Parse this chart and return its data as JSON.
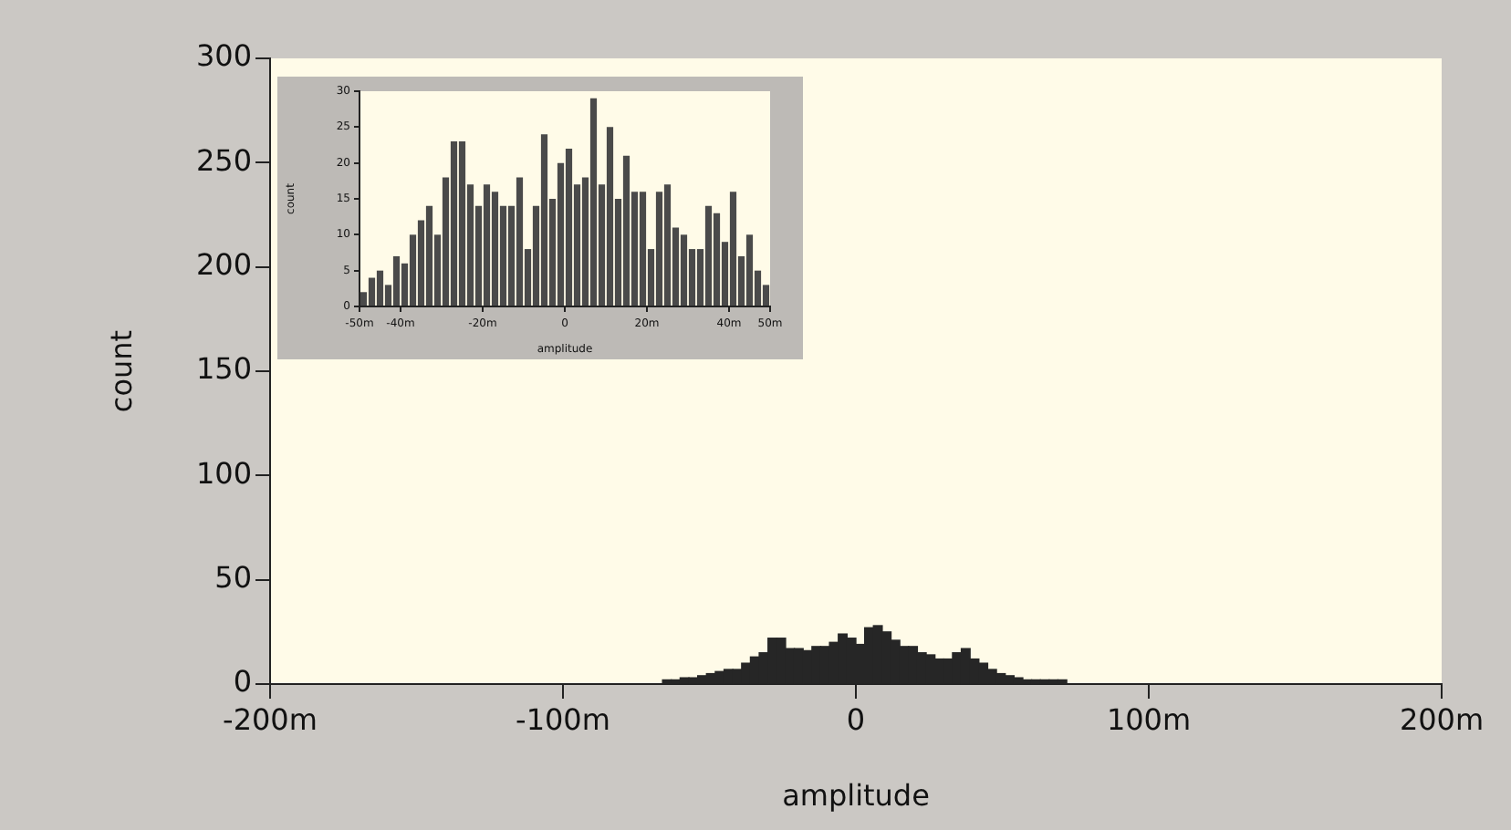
{
  "chart_data": [
    {
      "type": "histogram",
      "xlabel": "amplitude",
      "ylabel": "count",
      "color": "#262626",
      "bins": [
        -66,
        -63,
        -60,
        -57,
        -54,
        -51,
        -48,
        -45,
        -42,
        -39,
        -36,
        -33,
        -30,
        -27,
        -24,
        -21,
        -18,
        -15,
        -12,
        -9,
        -6,
        -3,
        0,
        3,
        6,
        9,
        12,
        15,
        18,
        21,
        24,
        27,
        30,
        33,
        36,
        39,
        42,
        45,
        48,
        51,
        54,
        57,
        60,
        63,
        66,
        69,
        72
      ],
      "values": [
        2,
        2,
        3,
        3,
        4,
        5,
        6,
        7,
        7,
        10,
        13,
        15,
        22,
        22,
        17,
        17,
        16,
        18,
        18,
        20,
        24,
        22,
        19,
        27,
        28,
        25,
        21,
        18,
        18,
        15,
        14,
        12,
        12,
        15,
        17,
        12,
        10,
        7,
        5,
        4,
        3,
        2,
        2,
        2,
        2,
        2
      ],
      "xlim": [
        -200,
        200
      ],
      "xticks": [
        {
          "value": -200,
          "label": "-200m"
        },
        {
          "value": -100,
          "label": "-100m"
        },
        0,
        {
          "value": 100,
          "label": "100m"
        },
        {
          "value": 200,
          "label": "200m"
        }
      ],
      "ylim": [
        0,
        300
      ],
      "yticks": [
        0,
        50,
        100,
        150,
        200,
        250,
        300
      ]
    },
    {
      "type": "histogram",
      "xlabel": "amplitude",
      "ylabel": "count",
      "color": "#4a4a4a",
      "bins": [
        -50,
        -48,
        -46,
        -44,
        -42,
        -40,
        -38,
        -36,
        -34,
        -32,
        -30,
        -28,
        -26,
        -24,
        -22,
        -20,
        -18,
        -16,
        -14,
        -12,
        -10,
        -8,
        -6,
        -4,
        -2,
        0,
        2,
        4,
        6,
        8,
        10,
        12,
        14,
        16,
        18,
        20,
        22,
        24,
        26,
        28,
        30,
        32,
        34,
        36,
        38,
        40,
        42,
        44,
        46,
        48,
        50
      ],
      "values": [
        2,
        4,
        5,
        3,
        7,
        6,
        10,
        12,
        14,
        10,
        18,
        23,
        23,
        17,
        14,
        17,
        16,
        14,
        14,
        18,
        8,
        14,
        24,
        15,
        20,
        22,
        17,
        18,
        29,
        17,
        25,
        15,
        21,
        16,
        16,
        8,
        16,
        17,
        11,
        10,
        8,
        8,
        14,
        13,
        9,
        16,
        7,
        10,
        5,
        3
      ],
      "xlim": [
        -50,
        50
      ],
      "xticks": [
        {
          "value": -50,
          "label": "-50m"
        },
        {
          "value": -40,
          "label": "-40m"
        },
        {
          "value": -20,
          "label": "-20m"
        },
        0,
        {
          "value": 20,
          "label": "20m"
        },
        {
          "value": 40,
          "label": "40m"
        },
        {
          "value": 50,
          "label": "50m"
        }
      ],
      "ylim": [
        0,
        30
      ],
      "yticks": [
        0,
        5,
        10,
        15,
        20,
        25,
        30
      ]
    }
  ]
}
